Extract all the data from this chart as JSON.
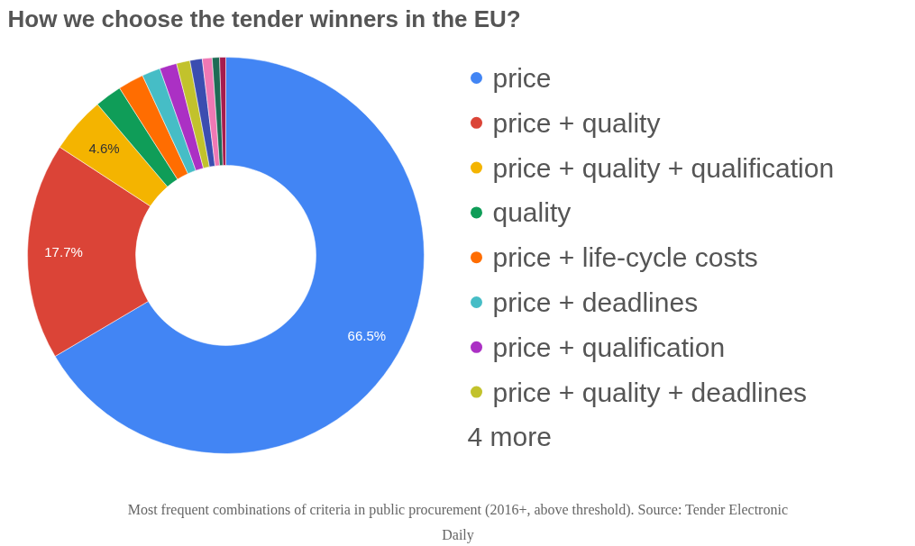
{
  "chart_data": {
    "type": "donut",
    "title": "How we choose the tender winners in the EU?",
    "categories": [
      "price",
      "price + quality",
      "price + quality + qualification",
      "quality",
      "price + life-cycle costs",
      "price + deadlines",
      "price + qualification",
      "price + quality + deadlines",
      null,
      null,
      null,
      null
    ],
    "values": [
      66.5,
      17.7,
      4.6,
      2.2,
      2.1,
      1.5,
      1.4,
      1.1,
      1.0,
      0.8,
      0.6,
      0.5
    ],
    "colors": [
      "#4285f4",
      "#db4437",
      "#f4b400",
      "#0f9d58",
      "#ff6d01",
      "#46bdc6",
      "#ab30c4",
      "#c2c22c",
      "#3b4db0",
      "#ef78b4",
      "#1e6b55",
      "#a61c4e"
    ],
    "value_labels": [
      "66.5%",
      "17.7%",
      "4.6%",
      null,
      null,
      null,
      null,
      null,
      null,
      null,
      null,
      null
    ],
    "legend": "right",
    "annotations": [
      "4 more",
      "Most frequent combinations of criteria in public procurement (2016+, above threshold). Source: Tender Electronic Daily"
    ]
  }
}
